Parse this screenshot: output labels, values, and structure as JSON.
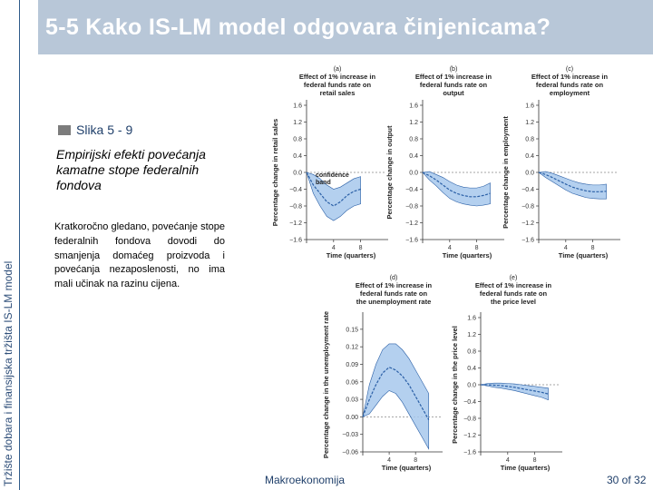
{
  "slide": {
    "title": "5-5 Kako IS-LM model odgovara činjenicama?",
    "side_label": "Tržište dobara i finansijska tržišta IS-LM model",
    "figure_label": "Slika 5 - 9",
    "figure_caption": "Empirijski efekti povećanja kamatne stope federalnih fondova",
    "figure_text": "Kratkoročno gledano, povećanje stope federalnih fondova dovodi do smanjenja domaćeg proizvoda i povećanja nezaposlenosti, no ima mali učinak na razinu cijena.",
    "footer_course": "Makroekonomija",
    "footer_page": "30 of 32"
  },
  "chart_data": [
    {
      "type": "line",
      "panel": "(a)",
      "title": "Effect of 1% increase in federal funds rate on retail sales",
      "ylabel": "Percentage change in retail sales",
      "xlabel": "Time (quarters)",
      "xlim": [
        0,
        11
      ],
      "ylim": [
        -1.6,
        1.6
      ],
      "yticks": [
        "1.6",
        "1.2",
        "0.8",
        "0.4",
        "0.0",
        "−0.4",
        "−0.8",
        "−1.2",
        "−1.6"
      ],
      "ytick_values": [
        1.6,
        1.2,
        0.8,
        0.4,
        0.0,
        -0.4,
        -0.8,
        -1.2,
        -1.6
      ],
      "xticks": [
        "4",
        "8"
      ],
      "xtick_values": [
        4,
        8
      ],
      "annotation": "confidence band",
      "x": [
        0,
        1,
        2,
        3,
        4,
        5,
        6,
        7,
        8
      ],
      "estimate": [
        0.0,
        -0.3,
        -0.5,
        -0.7,
        -0.8,
        -0.7,
        -0.55,
        -0.45,
        -0.4
      ],
      "upper": [
        0.0,
        -0.05,
        -0.15,
        -0.3,
        -0.4,
        -0.35,
        -0.25,
        -0.15,
        -0.1
      ],
      "lower": [
        0.0,
        -0.5,
        -0.8,
        -1.05,
        -1.15,
        -1.05,
        -0.9,
        -0.8,
        -0.75
      ]
    },
    {
      "type": "line",
      "panel": "(b)",
      "title": "Effect of 1% increase in federal funds rate on output",
      "ylabel": "Percentage change in output",
      "xlabel": "Time (quarters)",
      "xlim": [
        0,
        11
      ],
      "ylim": [
        -1.6,
        1.6
      ],
      "yticks": [
        "1.6",
        "1.2",
        "0.8",
        "0.4",
        "0.0",
        "−0.4",
        "−0.8",
        "−1.2",
        "−1.6"
      ],
      "ytick_values": [
        1.6,
        1.2,
        0.8,
        0.4,
        0.0,
        -0.4,
        -0.8,
        -1.2,
        -1.6
      ],
      "xticks": [
        "4",
        "8"
      ],
      "xtick_values": [
        4,
        8
      ],
      "x": [
        0,
        1,
        2,
        3,
        4,
        5,
        6,
        7,
        8,
        9,
        10
      ],
      "estimate": [
        0.0,
        -0.08,
        -0.18,
        -0.3,
        -0.42,
        -0.5,
        -0.55,
        -0.58,
        -0.58,
        -0.55,
        -0.5
      ],
      "upper": [
        0.0,
        0.02,
        -0.05,
        -0.12,
        -0.22,
        -0.3,
        -0.35,
        -0.37,
        -0.37,
        -0.33,
        -0.25
      ],
      "lower": [
        0.0,
        -0.18,
        -0.32,
        -0.48,
        -0.62,
        -0.7,
        -0.75,
        -0.78,
        -0.8,
        -0.78,
        -0.75
      ]
    },
    {
      "type": "line",
      "panel": "(c)",
      "title": "Effect of 1% increase in federal funds rate on employment",
      "ylabel": "Percentage change in employment",
      "xlabel": "Time (quarters)",
      "xlim": [
        0,
        11
      ],
      "ylim": [
        -1.6,
        1.6
      ],
      "yticks": [
        "1.6",
        "1.2",
        "0.8",
        "0.4",
        "0.0",
        "−0.4",
        "−0.8",
        "−1.2",
        "−1.6"
      ],
      "ytick_values": [
        1.6,
        1.2,
        0.8,
        0.4,
        0.0,
        -0.4,
        -0.8,
        -1.2,
        -1.6
      ],
      "xticks": [
        "4",
        "8"
      ],
      "xtick_values": [
        4,
        8
      ],
      "x": [
        0,
        1,
        2,
        3,
        4,
        5,
        6,
        7,
        8,
        9,
        10
      ],
      "estimate": [
        0.0,
        -0.05,
        -0.12,
        -0.2,
        -0.28,
        -0.35,
        -0.4,
        -0.44,
        -0.46,
        -0.46,
        -0.45
      ],
      "upper": [
        0.0,
        0.02,
        -0.02,
        -0.08,
        -0.14,
        -0.2,
        -0.25,
        -0.28,
        -0.3,
        -0.3,
        -0.28
      ],
      "lower": [
        0.0,
        -0.12,
        -0.22,
        -0.32,
        -0.42,
        -0.5,
        -0.55,
        -0.6,
        -0.62,
        -0.63,
        -0.63
      ]
    },
    {
      "type": "line",
      "panel": "(d)",
      "title": "Effect of 1% increase in federal funds rate on the unemployment rate",
      "ylabel": "Percentage change in the unemployment rate",
      "xlabel": "Time (quarters)",
      "xlim": [
        0,
        11
      ],
      "ylim": [
        -0.06,
        0.17
      ],
      "yticks": [
        "0.15",
        "0.12",
        "0.09",
        "0.06",
        "0.03",
        "0.00",
        "−0.03",
        "−0.06"
      ],
      "ytick_values": [
        0.15,
        0.12,
        0.09,
        0.06,
        0.03,
        0.0,
        -0.03,
        -0.06
      ],
      "xticks": [
        "4",
        "8"
      ],
      "xtick_values": [
        4,
        8
      ],
      "x": [
        0,
        1,
        2,
        3,
        4,
        5,
        6,
        7,
        8,
        9,
        10
      ],
      "estimate": [
        0.0,
        0.03,
        0.055,
        0.075,
        0.085,
        0.08,
        0.07,
        0.055,
        0.035,
        0.015,
        -0.005
      ],
      "upper": [
        0.0,
        0.055,
        0.09,
        0.115,
        0.125,
        0.125,
        0.115,
        0.1,
        0.08,
        0.06,
        0.04
      ],
      "lower": [
        0.0,
        0.005,
        0.02,
        0.035,
        0.045,
        0.04,
        0.025,
        0.005,
        -0.015,
        -0.035,
        -0.055
      ]
    },
    {
      "type": "line",
      "panel": "(e)",
      "title": "Effect of 1% increase in federal funds rate on the price level",
      "ylabel": "Percentage change in the price level",
      "xlabel": "Time (quarters)",
      "xlim": [
        0,
        11
      ],
      "ylim": [
        -1.6,
        1.6
      ],
      "yticks": [
        "1.6",
        "1.2",
        "0.8",
        "0.4",
        "0.0",
        "−0.4",
        "−0.8",
        "−1.2",
        "−1.6"
      ],
      "ytick_values": [
        1.6,
        1.2,
        0.8,
        0.4,
        0.0,
        -0.4,
        -0.8,
        -1.2,
        -1.6
      ],
      "xticks": [
        "4",
        "8"
      ],
      "xtick_values": [
        4,
        8
      ],
      "x": [
        0,
        1,
        2,
        3,
        4,
        5,
        6,
        7,
        8,
        9,
        10
      ],
      "estimate": [
        0.0,
        0.0,
        -0.01,
        -0.02,
        -0.04,
        -0.06,
        -0.09,
        -0.12,
        -0.15,
        -0.18,
        -0.22
      ],
      "upper": [
        0.0,
        0.03,
        0.04,
        0.04,
        0.03,
        0.02,
        0.0,
        -0.02,
        -0.04,
        -0.06,
        -0.08
      ],
      "lower": [
        0.0,
        -0.03,
        -0.06,
        -0.08,
        -0.11,
        -0.14,
        -0.18,
        -0.22,
        -0.26,
        -0.3,
        -0.36
      ]
    }
  ],
  "colors": {
    "band_fill": "#a7c8ec",
    "estimate_line": "#2a5fa6",
    "header": "#b8c7d8",
    "accent_text": "#1f3f6a"
  }
}
